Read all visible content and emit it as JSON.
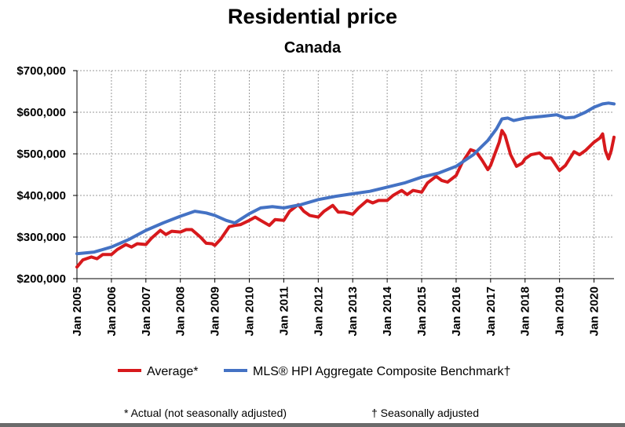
{
  "chart_data": {
    "type": "line",
    "title": "Residential price",
    "subtitle": "Canada",
    "xlabel": "",
    "ylabel": "",
    "x_ticks": [
      "Jan 2005",
      "Jan 2006",
      "Jan 2007",
      "Jan 2008",
      "Jan 2009",
      "Jan 2010",
      "Jan 2011",
      "Jan 2012",
      "Jan 2013",
      "Jan 2014",
      "Jan 2015",
      "Jan 2016",
      "Jan 2017",
      "Jan 2018",
      "Jan 2019",
      "Jan 2020"
    ],
    "y_ticks": [
      "$200,000",
      "$300,000",
      "$400,000",
      "$500,000",
      "$600,000",
      "$700,000"
    ],
    "xlim": [
      2005.0,
      2020.58
    ],
    "ylim": [
      200000,
      700000
    ],
    "grid": true,
    "legend_position": "bottom",
    "series": [
      {
        "name": "Average*",
        "color": "#d7191c",
        "points": [
          [
            2005.0,
            228000
          ],
          [
            2005.17,
            245000
          ],
          [
            2005.42,
            252000
          ],
          [
            2005.58,
            248000
          ],
          [
            2005.75,
            258000
          ],
          [
            2006.0,
            258000
          ],
          [
            2006.17,
            270000
          ],
          [
            2006.42,
            282000
          ],
          [
            2006.58,
            276000
          ],
          [
            2006.75,
            284000
          ],
          [
            2007.0,
            282000
          ],
          [
            2007.17,
            298000
          ],
          [
            2007.42,
            316000
          ],
          [
            2007.58,
            306000
          ],
          [
            2007.75,
            314000
          ],
          [
            2008.0,
            312000
          ],
          [
            2008.17,
            318000
          ],
          [
            2008.33,
            318000
          ],
          [
            2008.58,
            300000
          ],
          [
            2008.75,
            285000
          ],
          [
            2008.92,
            284000
          ],
          [
            2009.0,
            280000
          ],
          [
            2009.17,
            295000
          ],
          [
            2009.42,
            325000
          ],
          [
            2009.58,
            328000
          ],
          [
            2009.75,
            330000
          ],
          [
            2010.0,
            340000
          ],
          [
            2010.17,
            348000
          ],
          [
            2010.33,
            340000
          ],
          [
            2010.58,
            328000
          ],
          [
            2010.75,
            342000
          ],
          [
            2011.0,
            340000
          ],
          [
            2011.17,
            362000
          ],
          [
            2011.42,
            378000
          ],
          [
            2011.58,
            362000
          ],
          [
            2011.75,
            352000
          ],
          [
            2012.0,
            348000
          ],
          [
            2012.17,
            362000
          ],
          [
            2012.42,
            376000
          ],
          [
            2012.58,
            360000
          ],
          [
            2012.75,
            360000
          ],
          [
            2013.0,
            355000
          ],
          [
            2013.17,
            370000
          ],
          [
            2013.42,
            388000
          ],
          [
            2013.58,
            382000
          ],
          [
            2013.75,
            388000
          ],
          [
            2014.0,
            388000
          ],
          [
            2014.17,
            400000
          ],
          [
            2014.42,
            412000
          ],
          [
            2014.58,
            402000
          ],
          [
            2014.75,
            412000
          ],
          [
            2015.0,
            408000
          ],
          [
            2015.17,
            430000
          ],
          [
            2015.42,
            446000
          ],
          [
            2015.58,
            436000
          ],
          [
            2015.75,
            432000
          ],
          [
            2016.0,
            448000
          ],
          [
            2016.17,
            478000
          ],
          [
            2016.42,
            510000
          ],
          [
            2016.58,
            505000
          ],
          [
            2016.75,
            485000
          ],
          [
            2016.92,
            462000
          ],
          [
            2017.0,
            472000
          ],
          [
            2017.08,
            490000
          ],
          [
            2017.25,
            528000
          ],
          [
            2017.33,
            556000
          ],
          [
            2017.42,
            544000
          ],
          [
            2017.58,
            498000
          ],
          [
            2017.75,
            470000
          ],
          [
            2017.92,
            478000
          ],
          [
            2018.0,
            488000
          ],
          [
            2018.17,
            498000
          ],
          [
            2018.42,
            502000
          ],
          [
            2018.58,
            490000
          ],
          [
            2018.75,
            490000
          ],
          [
            2019.0,
            460000
          ],
          [
            2019.17,
            472000
          ],
          [
            2019.42,
            505000
          ],
          [
            2019.58,
            498000
          ],
          [
            2019.75,
            508000
          ],
          [
            2020.0,
            528000
          ],
          [
            2020.17,
            538000
          ],
          [
            2020.25,
            548000
          ],
          [
            2020.33,
            508000
          ],
          [
            2020.42,
            488000
          ],
          [
            2020.5,
            508000
          ],
          [
            2020.58,
            540000
          ]
        ]
      },
      {
        "name": "MLS® HPI Aggregate Composite Benchmark†",
        "color": "#4472c4",
        "points": [
          [
            2005.0,
            260000
          ],
          [
            2005.5,
            264000
          ],
          [
            2006.0,
            276000
          ],
          [
            2006.5,
            294000
          ],
          [
            2007.0,
            316000
          ],
          [
            2007.5,
            334000
          ],
          [
            2008.0,
            350000
          ],
          [
            2008.42,
            362000
          ],
          [
            2008.75,
            358000
          ],
          [
            2009.0,
            352000
          ],
          [
            2009.33,
            340000
          ],
          [
            2009.58,
            334000
          ],
          [
            2010.0,
            356000
          ],
          [
            2010.33,
            370000
          ],
          [
            2010.67,
            373000
          ],
          [
            2011.0,
            370000
          ],
          [
            2011.5,
            378000
          ],
          [
            2012.0,
            390000
          ],
          [
            2012.5,
            398000
          ],
          [
            2013.0,
            404000
          ],
          [
            2013.5,
            410000
          ],
          [
            2014.0,
            420000
          ],
          [
            2014.5,
            430000
          ],
          [
            2015.0,
            444000
          ],
          [
            2015.5,
            454000
          ],
          [
            2016.0,
            470000
          ],
          [
            2016.5,
            498000
          ],
          [
            2016.92,
            532000
          ],
          [
            2017.17,
            560000
          ],
          [
            2017.33,
            584000
          ],
          [
            2017.5,
            586000
          ],
          [
            2017.67,
            580000
          ],
          [
            2018.0,
            586000
          ],
          [
            2018.5,
            590000
          ],
          [
            2018.92,
            594000
          ],
          [
            2019.17,
            586000
          ],
          [
            2019.42,
            588000
          ],
          [
            2019.75,
            600000
          ],
          [
            2020.0,
            612000
          ],
          [
            2020.25,
            620000
          ],
          [
            2020.42,
            622000
          ],
          [
            2020.58,
            620000
          ]
        ]
      }
    ]
  },
  "footnotes": {
    "actual": "* Actual (not seasonally adjusted)",
    "seasonal": "† Seasonally adjusted"
  }
}
